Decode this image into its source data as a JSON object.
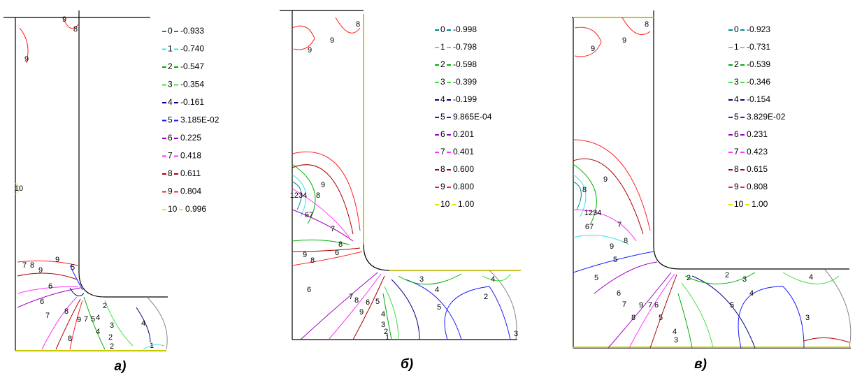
{
  "level_colors": [
    "#008c8c",
    "#3fe0e0",
    "#00b000",
    "#40e040",
    "#00008c",
    "#1a1aff",
    "#a000c0",
    "#ff30ff",
    "#b00000",
    "#ff2020",
    "#e8e800"
  ],
  "panels": [
    {
      "caption": "а)",
      "legend": [
        {
          "level": "0",
          "value": "-0.933"
        },
        {
          "level": "1",
          "value": "-0.740"
        },
        {
          "level": "2",
          "value": "-0.547"
        },
        {
          "level": "3",
          "value": "-0.354"
        },
        {
          "level": "4",
          "value": "-0.161"
        },
        {
          "level": "5",
          "value": "3.185E-02"
        },
        {
          "level": "6",
          "value": "0.225"
        },
        {
          "level": "7",
          "value": "0.418"
        },
        {
          "level": "8",
          "value": "0.611"
        },
        {
          "level": "9",
          "value": "0.804"
        },
        {
          "level": "10",
          "value": "0.996"
        }
      ],
      "contour_labels": [
        "9",
        "9",
        "8",
        "10",
        "7",
        "8",
        "9",
        "9",
        "5",
        "6",
        "6",
        "7",
        "8",
        "9",
        "7",
        "5",
        "4",
        "2",
        "3",
        "2",
        "2",
        "4",
        "8",
        "4",
        "1"
      ]
    },
    {
      "caption": "б)",
      "legend": [
        {
          "level": "0",
          "value": "-0.998"
        },
        {
          "level": "1",
          "value": "-0.798"
        },
        {
          "level": "2",
          "value": "-0.598"
        },
        {
          "level": "3",
          "value": "-0.399"
        },
        {
          "level": "4",
          "value": "-0.199"
        },
        {
          "level": "5",
          "value": "9.865E-04"
        },
        {
          "level": "6",
          "value": "0.201"
        },
        {
          "level": "7",
          "value": "0.401"
        },
        {
          "level": "8",
          "value": "0.600"
        },
        {
          "level": "9",
          "value": "0.800"
        },
        {
          "level": "10",
          "value": "1.00"
        }
      ],
      "contour_labels": [
        "8",
        "9",
        "9",
        "9",
        "8",
        "1234",
        "67",
        "7",
        "8",
        "6",
        "9",
        "8",
        "6",
        "7",
        "8",
        "9",
        "6",
        "5",
        "4",
        "3",
        "2",
        "1",
        "5",
        "4",
        "3",
        "2",
        "4",
        "3"
      ]
    },
    {
      "caption": "в)",
      "legend": [
        {
          "level": "0",
          "value": "-0.923"
        },
        {
          "level": "1",
          "value": "-0.731"
        },
        {
          "level": "2",
          "value": "-0.539"
        },
        {
          "level": "3",
          "value": "-0.346"
        },
        {
          "level": "4",
          "value": "-0.154"
        },
        {
          "level": "5",
          "value": "3.829E-02"
        },
        {
          "level": "6",
          "value": "0.231"
        },
        {
          "level": "7",
          "value": "0.423"
        },
        {
          "level": "8",
          "value": "0.615"
        },
        {
          "level": "9",
          "value": "0.808"
        },
        {
          "level": "10",
          "value": "1.00"
        }
      ],
      "contour_labels": [
        "8",
        "9",
        "9",
        "9",
        "8",
        "1234",
        "67",
        "5",
        "7",
        "9",
        "8",
        "5",
        "6",
        "7",
        "8",
        "9",
        "7",
        "6",
        "5",
        "4",
        "3",
        "2",
        "5",
        "4",
        "3",
        "2",
        "4",
        "3"
      ]
    }
  ]
}
